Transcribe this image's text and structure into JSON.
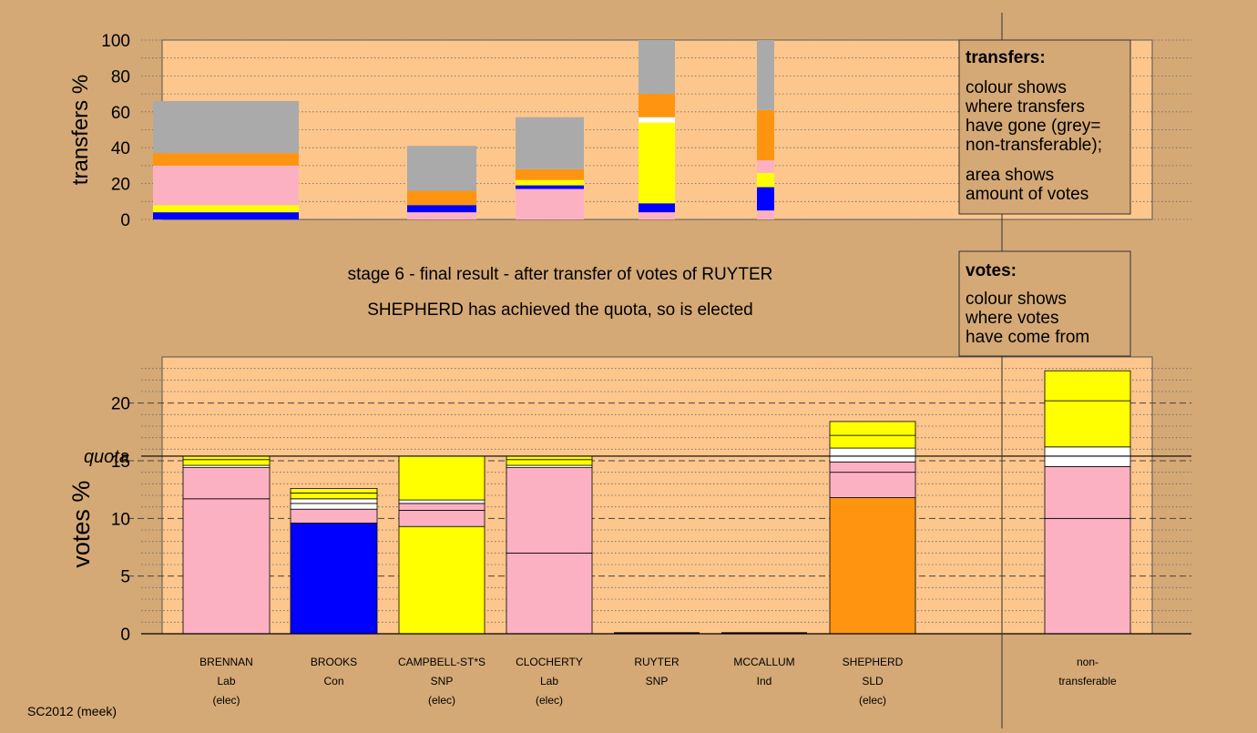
{
  "colors": {
    "page_bg": "#d4a976",
    "plot_bg": "#fdc68c",
    "pink": "#fcb1c3",
    "yellow": "#ffff00",
    "blue": "#0000ff",
    "orange": "#ff9410",
    "grey": "#aaaaaa",
    "white": "#ffffff"
  },
  "headings": {
    "stage": "stage 6 - final result - after transfer of votes of RUYTER",
    "result": "SHEPHERD has achieved the quota, so is elected"
  },
  "legend_transfers": {
    "title": "transfers:",
    "lines1": [
      "colour shows",
      "where transfers",
      "have gone (grey=",
      "non-transferable);"
    ],
    "lines2": [
      "area shows",
      "amount of votes"
    ]
  },
  "legend_votes": {
    "title": "votes:",
    "lines": [
      "colour shows",
      "where votes",
      "have come from"
    ]
  },
  "footer": "SC2012 (meek)",
  "chart_data": [
    {
      "type": "bar",
      "stacked": true,
      "ylabel": "transfers %",
      "ylim": [
        0,
        100
      ],
      "yticks": [
        0,
        20,
        40,
        60,
        80,
        100
      ],
      "bars": [
        {
          "candidate": "BRENNAN",
          "segments": [
            {
              "color": "blue",
              "value": 4
            },
            {
              "color": "yellow",
              "value": 4
            },
            {
              "color": "pink",
              "value": 22
            },
            {
              "color": "orange",
              "value": 7
            },
            {
              "color": "grey",
              "value": 29
            }
          ]
        },
        {
          "candidate": "CAMPBELL-ST*S",
          "segments": [
            {
              "color": "pink",
              "value": 4
            },
            {
              "color": "blue",
              "value": 4
            },
            {
              "color": "orange",
              "value": 8
            },
            {
              "color": "grey",
              "value": 25
            }
          ]
        },
        {
          "candidate": "CLOCHERTY",
          "segments": [
            {
              "color": "pink",
              "value": 17
            },
            {
              "color": "blue",
              "value": 2
            },
            {
              "color": "yellow",
              "value": 3
            },
            {
              "color": "orange",
              "value": 6
            },
            {
              "color": "grey",
              "value": 29
            }
          ]
        },
        {
          "candidate": "RUYTER",
          "segments": [
            {
              "color": "pink",
              "value": 4
            },
            {
              "color": "blue",
              "value": 5
            },
            {
              "color": "yellow",
              "value": 45
            },
            {
              "color": "white",
              "value": 3
            },
            {
              "color": "orange",
              "value": 13
            },
            {
              "color": "grey",
              "value": 30
            }
          ]
        },
        {
          "candidate": "MCCALLUM",
          "segments": [
            {
              "color": "pink",
              "value": 5
            },
            {
              "color": "blue",
              "value": 13
            },
            {
              "color": "yellow",
              "value": 8
            },
            {
              "color": "pink",
              "value": 7
            },
            {
              "color": "orange",
              "value": 28
            },
            {
              "color": "grey",
              "value": 39
            }
          ]
        }
      ]
    },
    {
      "type": "bar",
      "stacked": true,
      "ylabel": "votes %",
      "ylim": [
        0,
        24
      ],
      "yticks": [
        0,
        5,
        10,
        15,
        20
      ],
      "quota": 15.4,
      "quota_label": "quota",
      "categories": [
        {
          "name": "BRENNAN",
          "party": "Lab",
          "status": "(elec)",
          "segments": [
            {
              "color": "pink",
              "value": 11.7
            },
            {
              "color": "pink",
              "value": 2.7
            },
            {
              "color": "white",
              "value": 0.2
            },
            {
              "color": "yellow",
              "value": 0.5
            },
            {
              "color": "yellow",
              "value": 0.3
            }
          ]
        },
        {
          "name": "BROOKS",
          "party": "Con",
          "status": "",
          "segments": [
            {
              "color": "blue",
              "value": 9.6
            },
            {
              "color": "pink",
              "value": 1.2
            },
            {
              "color": "white",
              "value": 0.5
            },
            {
              "color": "white",
              "value": 0.4
            },
            {
              "color": "yellow",
              "value": 0.5
            },
            {
              "color": "yellow",
              "value": 0.4
            }
          ]
        },
        {
          "name": "CAMPBELL-ST*S",
          "party": "SNP",
          "status": "(elec)",
          "segments": [
            {
              "color": "yellow",
              "value": 9.3
            },
            {
              "color": "pink",
              "value": 1.4
            },
            {
              "color": "pink",
              "value": 0.6
            },
            {
              "color": "white",
              "value": 0.3
            },
            {
              "color": "yellow",
              "value": 3.8
            }
          ]
        },
        {
          "name": "CLOCHERTY",
          "party": "Lab",
          "status": "(elec)",
          "segments": [
            {
              "color": "pink",
              "value": 7.0
            },
            {
              "color": "pink",
              "value": 7.4
            },
            {
              "color": "white",
              "value": 0.2
            },
            {
              "color": "yellow",
              "value": 0.5
            },
            {
              "color": "yellow",
              "value": 0.3
            }
          ]
        },
        {
          "name": "RUYTER",
          "party": "SNP",
          "status": "",
          "segments": []
        },
        {
          "name": "MCCALLUM",
          "party": "Ind",
          "status": "",
          "segments": []
        },
        {
          "name": "SHEPHERD",
          "party": "SLD",
          "status": "(elec)",
          "segments": [
            {
              "color": "orange",
              "value": 11.8
            },
            {
              "color": "pink",
              "value": 2.2
            },
            {
              "color": "pink",
              "value": 0.9
            },
            {
              "color": "white",
              "value": 1.2
            },
            {
              "color": "yellow",
              "value": 1.1
            },
            {
              "color": "yellow",
              "value": 1.2
            }
          ]
        },
        {
          "name": "non-",
          "party": "transferable",
          "status": "",
          "segments": [
            {
              "color": "pink",
              "value": 10.0
            },
            {
              "color": "pink",
              "value": 4.5
            },
            {
              "color": "white",
              "value": 1.7
            },
            {
              "color": "yellow",
              "value": 4.0
            },
            {
              "color": "yellow",
              "value": 2.6
            }
          ]
        }
      ]
    }
  ]
}
